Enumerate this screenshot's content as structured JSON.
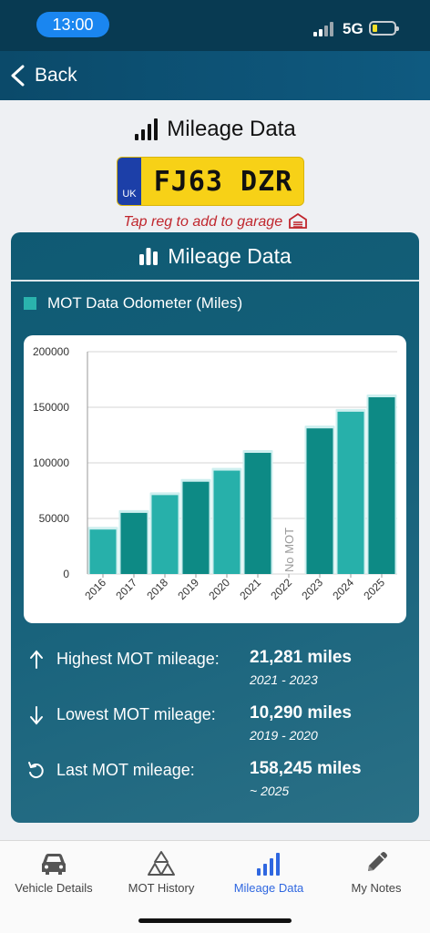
{
  "status_bar": {
    "time": "13:00",
    "network": "5G",
    "icons": [
      "signal-icon",
      "battery-icon"
    ]
  },
  "nav": {
    "back_label": "Back",
    "back_icon": "chevron-left-icon"
  },
  "header": {
    "title": "Mileage Data",
    "title_icon": "signal-bars-icon"
  },
  "reg_plate": {
    "country": "UK",
    "registration": "FJ63 DZR"
  },
  "garage_hint": {
    "text": "Tap reg to add to garage",
    "icon": "garage-icon"
  },
  "card": {
    "title": "Mileage Data",
    "title_icon": "bar-chart-icon",
    "legend": "MOT Data Odometer (Miles)"
  },
  "chart_data": {
    "type": "bar",
    "categories": [
      "2016",
      "2017",
      "2018",
      "2019",
      "2020",
      "2021",
      "2022",
      "2023",
      "2024",
      "2025"
    ],
    "values": [
      40000,
      55000,
      71000,
      83000,
      93000,
      109000,
      null,
      131000,
      146000,
      159000
    ],
    "annotations": [
      {
        "category": "2022",
        "text": "No MOT"
      }
    ],
    "ylim": [
      0,
      200000
    ],
    "yticks": [
      "0",
      "50000",
      "100000",
      "150000",
      "200000"
    ],
    "grid": true,
    "colors": {
      "light_bar": "#27b0aa",
      "dark_bar": "#0d8a85"
    }
  },
  "stats": [
    {
      "icon": "arrow-up-icon",
      "label": "Highest MOT mileage:",
      "value": "21,281 miles",
      "range": "2021 - 2023"
    },
    {
      "icon": "arrow-down-icon",
      "label": "Lowest MOT mileage:",
      "value": "10,290 miles",
      "range": "2019 - 2020"
    },
    {
      "icon": "rotate-ccw-icon",
      "label": "Last MOT mileage:",
      "value": "158,245 miles",
      "range": "~ 2025"
    }
  ],
  "tabs": [
    {
      "label": "Vehicle Details",
      "icon": "car-icon",
      "active": false
    },
    {
      "label": "MOT History",
      "icon": "triangles-icon",
      "active": false
    },
    {
      "label": "Mileage Data",
      "icon": "signal-bars-icon",
      "active": true
    },
    {
      "label": "My Notes",
      "icon": "pencil-icon",
      "active": false
    }
  ]
}
